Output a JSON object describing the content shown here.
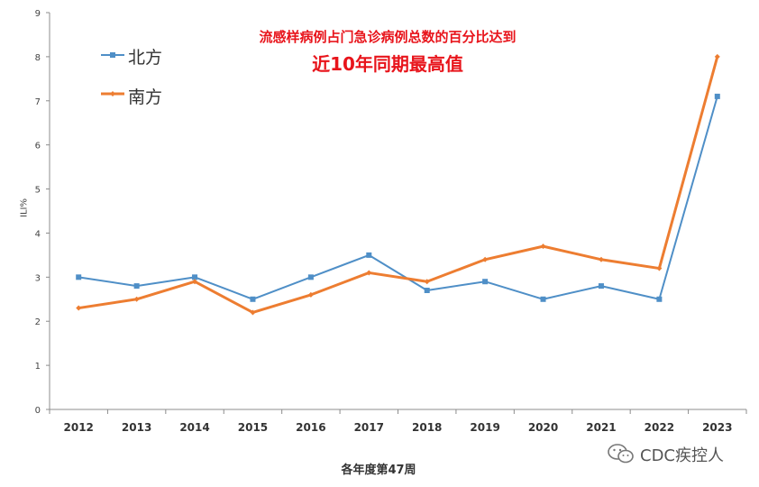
{
  "chart_data": {
    "type": "line",
    "title": "流感样病例占门急诊病例总数的百分比达到",
    "subtitle": "近10年同期最高值",
    "xlabel": "各年度第47周",
    "ylabel": "ILI%",
    "categories": [
      "2012",
      "2013",
      "2014",
      "2015",
      "2016",
      "2017",
      "2018",
      "2019",
      "2020",
      "2021",
      "2022",
      "2023"
    ],
    "y_ticks": [
      "0",
      "1",
      "2",
      "3",
      "4",
      "5",
      "6",
      "7",
      "8",
      "9"
    ],
    "ylim": [
      0,
      9
    ],
    "grid": false,
    "legend_position": "top-left",
    "series": [
      {
        "name": "北方",
        "color": "#4f8fc7",
        "marker": "square",
        "values": [
          3.0,
          2.8,
          3.0,
          2.5,
          3.0,
          3.5,
          2.7,
          2.9,
          2.5,
          2.8,
          2.5,
          7.1
        ]
      },
      {
        "name": "南方",
        "color": "#ed7d31",
        "marker": "diamond",
        "values": [
          2.3,
          2.5,
          2.9,
          2.2,
          2.6,
          3.1,
          2.9,
          3.4,
          3.7,
          3.4,
          3.2,
          8.0
        ]
      }
    ]
  },
  "watermark": {
    "text": "CDC疾控人",
    "icon": "wechat-icon"
  }
}
